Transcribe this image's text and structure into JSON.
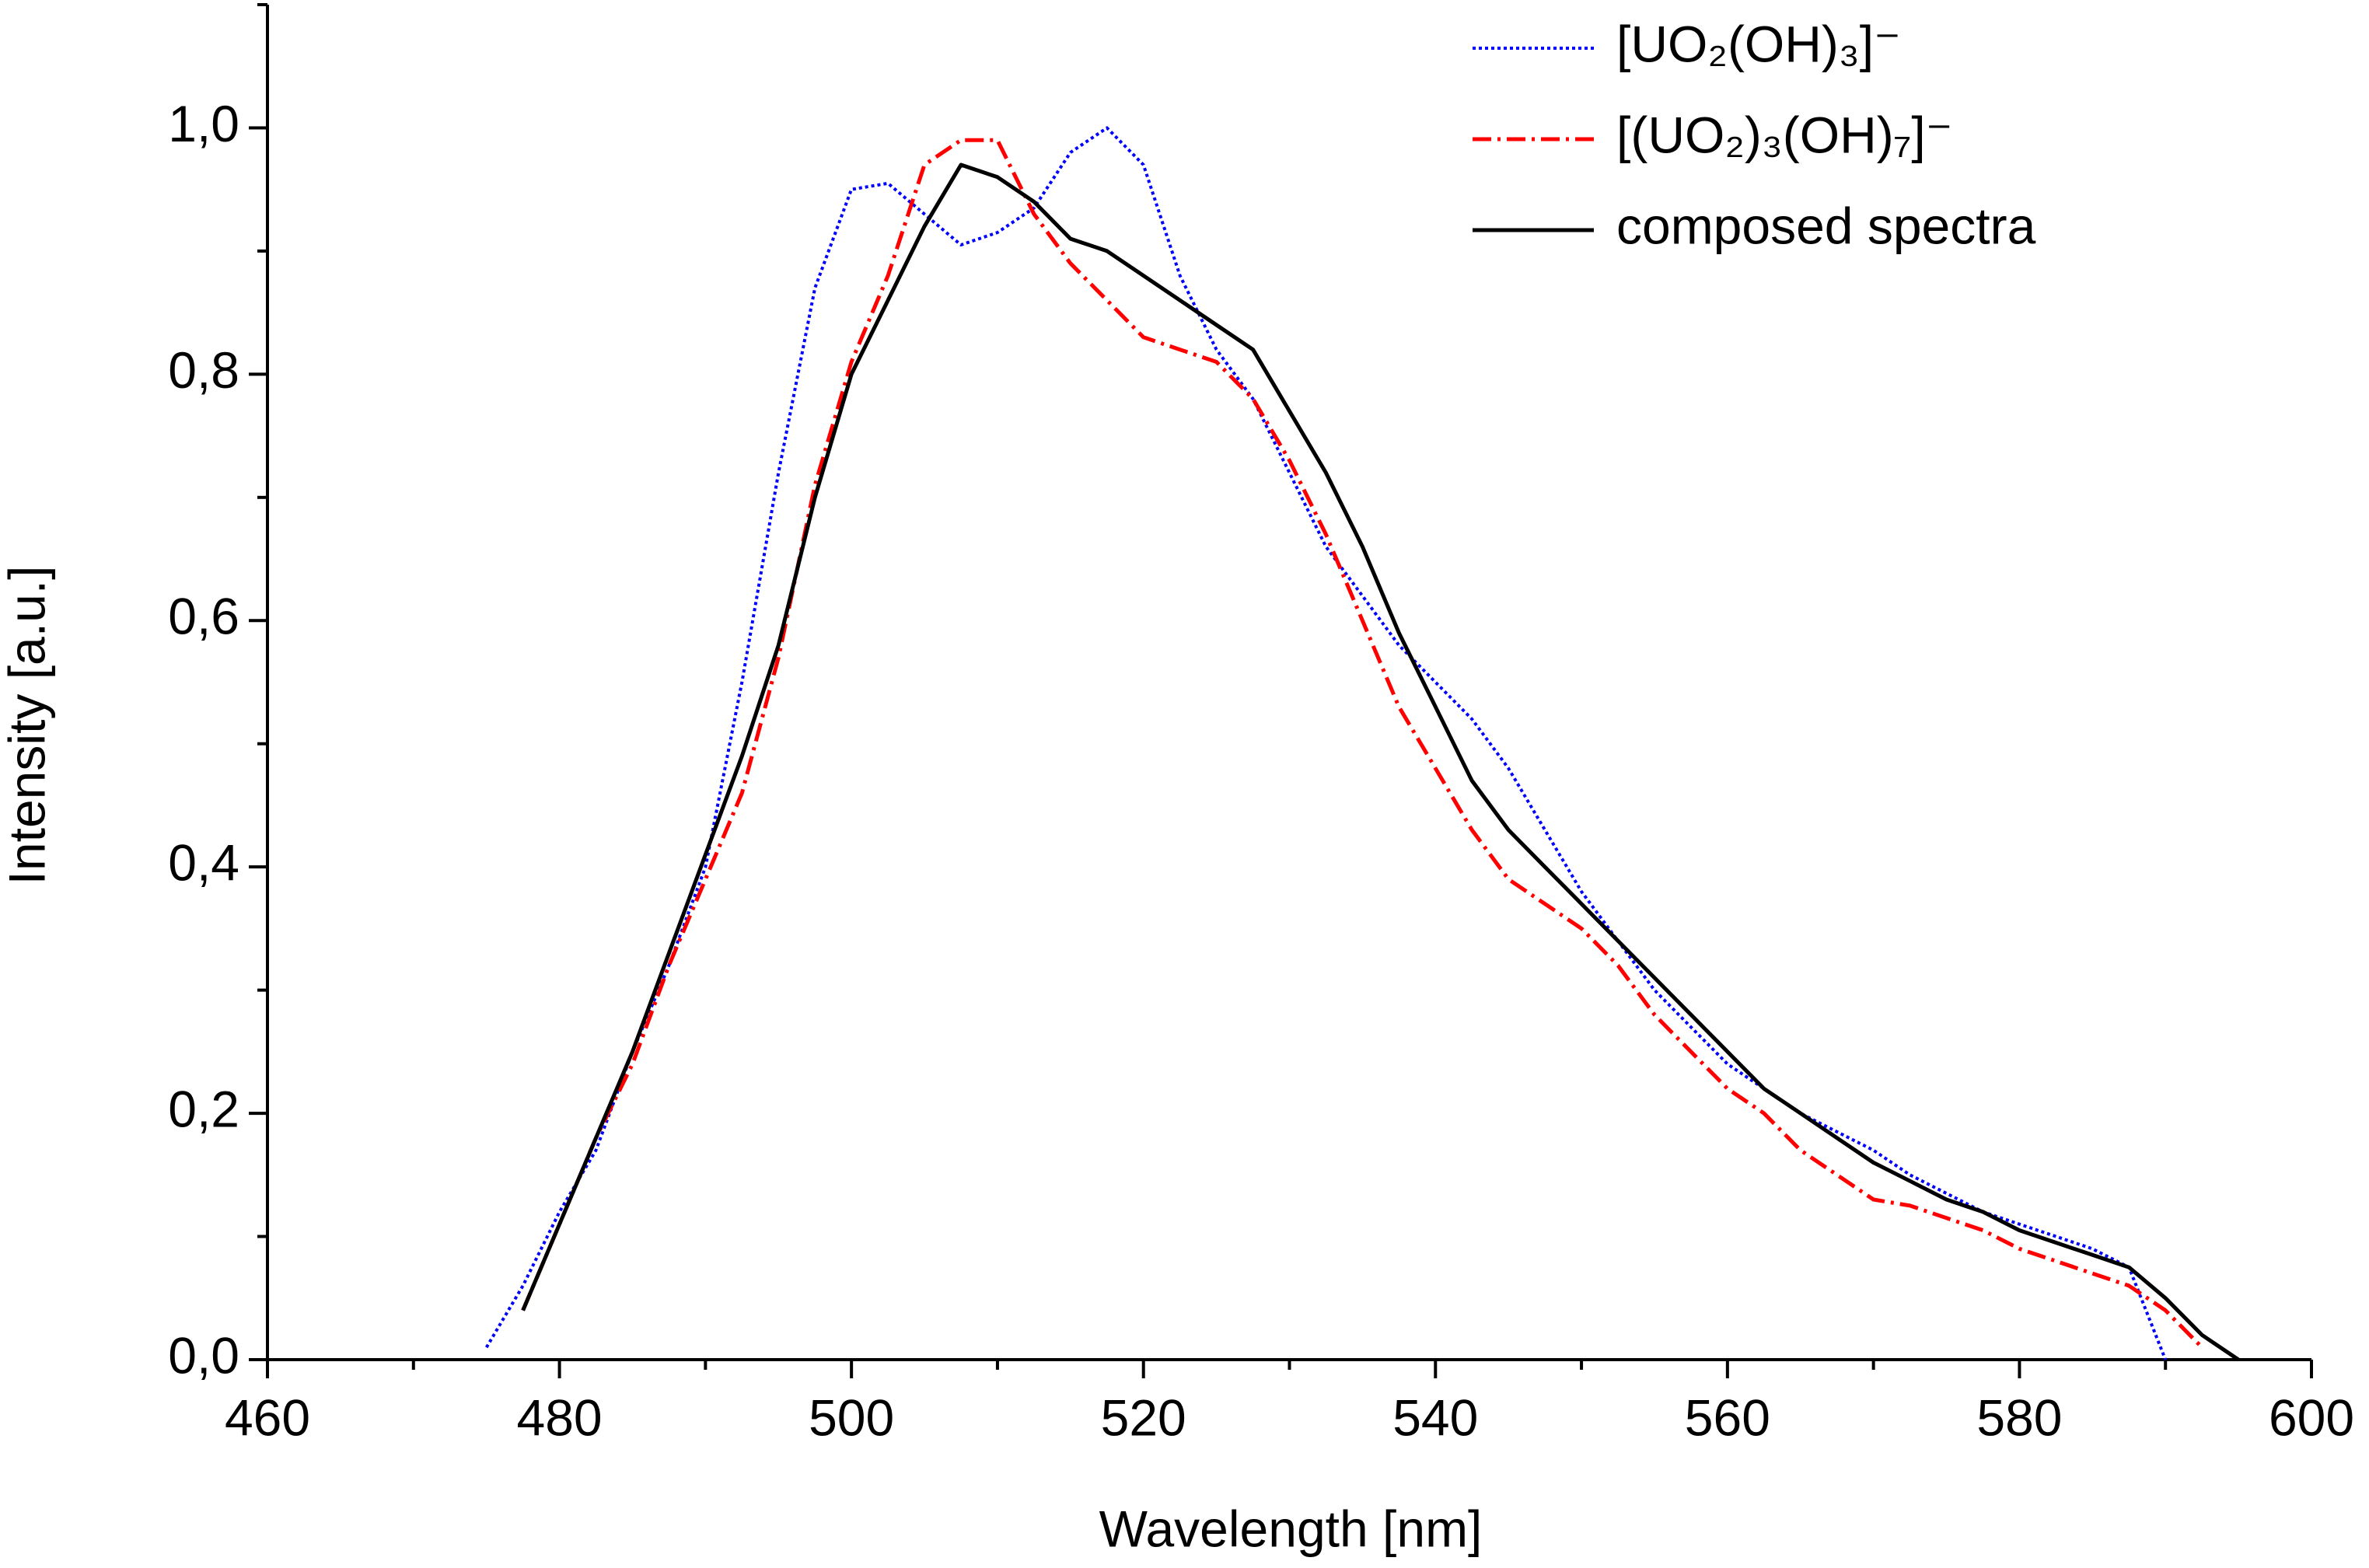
{
  "chart_data": {
    "type": "line",
    "x_label": "Wavelength [nm]",
    "y_label": "Intensity [a.u.]",
    "xlim": [
      460,
      600
    ],
    "xticks": [
      460,
      480,
      500,
      520,
      540,
      560,
      580,
      600
    ],
    "ylim": [
      0,
      1.1
    ],
    "yticks": [
      {
        "value": 0,
        "label": "0,0"
      },
      {
        "value": 0.2,
        "label": "0,2"
      },
      {
        "value": 0.4,
        "label": "0,4"
      },
      {
        "value": 0.6,
        "label": "0,6"
      },
      {
        "value": 0.8,
        "label": "0,8"
      },
      {
        "value": 1.0,
        "label": "1,0"
      }
    ],
    "legend": "upper right",
    "x": [
      475,
      477.5,
      480,
      482.5,
      485,
      487.5,
      490,
      492.5,
      495,
      497.5,
      500,
      502.5,
      505,
      507.5,
      510,
      512.5,
      515,
      517.5,
      520,
      522.5,
      525,
      527.5,
      530,
      532.5,
      535,
      537.5,
      540,
      542.5,
      545,
      547.5,
      550,
      552.5,
      555,
      557.5,
      560,
      562.5,
      565,
      567.5,
      570,
      572.5,
      575,
      577.5,
      580,
      582.5,
      585,
      587.5,
      590,
      592.5,
      595
    ],
    "series": [
      {
        "name": "[UO₂(OH)₃]⁻",
        "color": "#0000ff",
        "dash": "dotted",
        "values": [
          0.01,
          0.06,
          0.12,
          0.17,
          0.25,
          0.32,
          0.4,
          0.55,
          0.72,
          0.87,
          0.95,
          0.955,
          0.93,
          0.905,
          0.915,
          0.935,
          0.98,
          1.0,
          0.97,
          0.88,
          0.82,
          0.78,
          0.72,
          0.66,
          0.62,
          0.58,
          0.55,
          0.52,
          0.48,
          0.43,
          0.38,
          0.34,
          0.3,
          0.27,
          0.24,
          0.22,
          0.2,
          0.185,
          0.17,
          0.15,
          0.135,
          0.12,
          0.11,
          0.1,
          0.09,
          0.075,
          0.0,
          null,
          null
        ]
      },
      {
        "name": "[(UO₂)₃(OH)₇]⁻",
        "color": "#ff0000",
        "dash": "dashdot",
        "values": [
          null,
          0.04,
          0.11,
          0.18,
          0.24,
          0.32,
          0.39,
          0.46,
          0.57,
          0.71,
          0.81,
          0.88,
          0.97,
          0.99,
          0.99,
          0.93,
          0.89,
          0.86,
          0.83,
          0.82,
          0.81,
          0.78,
          0.73,
          0.67,
          0.6,
          0.53,
          0.48,
          0.43,
          0.39,
          0.37,
          0.35,
          0.32,
          0.28,
          0.25,
          0.22,
          0.2,
          0.17,
          0.15,
          0.13,
          0.125,
          0.115,
          0.105,
          0.09,
          0.08,
          0.07,
          0.06,
          0.04,
          0.01,
          null
        ]
      },
      {
        "name": "composed spectra",
        "color": "#000000",
        "dash": "solid",
        "values": [
          null,
          0.04,
          0.11,
          0.18,
          0.25,
          0.33,
          0.41,
          0.49,
          0.58,
          0.7,
          0.8,
          0.86,
          0.92,
          0.97,
          0.96,
          0.94,
          0.91,
          0.9,
          0.88,
          0.86,
          0.84,
          0.82,
          0.77,
          0.72,
          0.66,
          0.59,
          0.53,
          0.47,
          0.43,
          0.4,
          0.37,
          0.34,
          0.31,
          0.28,
          0.25,
          0.22,
          0.2,
          0.18,
          0.16,
          0.145,
          0.13,
          0.12,
          0.105,
          0.095,
          0.085,
          0.075,
          0.05,
          0.02,
          0.0
        ]
      }
    ]
  }
}
